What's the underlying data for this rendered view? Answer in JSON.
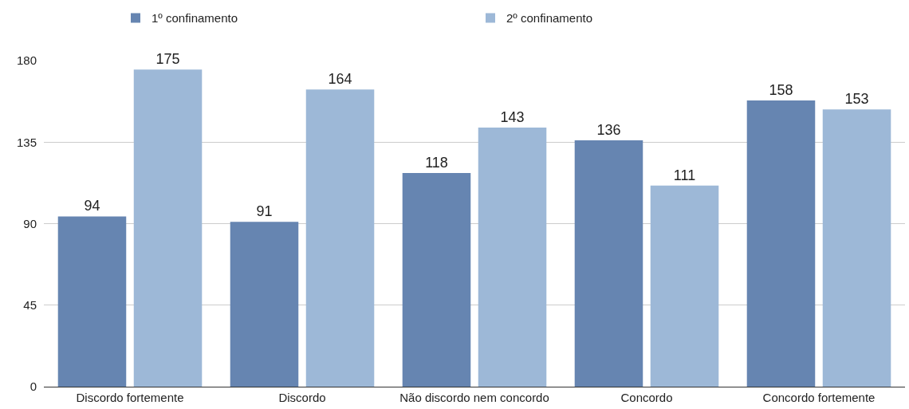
{
  "chart_data": {
    "type": "bar",
    "categories": [
      "Discordo fortemente",
      "Discordo",
      "Não discordo nem concordo",
      "Concordo",
      "Concordo fortemente"
    ],
    "series": [
      {
        "name": "1º confinamento",
        "color": "#6685b1",
        "values": [
          94,
          91,
          118,
          136,
          158
        ]
      },
      {
        "name": "2º confinamento",
        "color": "#9db8d7",
        "values": [
          175,
          164,
          143,
          111,
          153
        ]
      }
    ],
    "ylim": [
      0,
      180
    ],
    "yticks": [
      0,
      45,
      90,
      135,
      180
    ],
    "grid": "y",
    "legend": "top",
    "data_labels": true
  }
}
